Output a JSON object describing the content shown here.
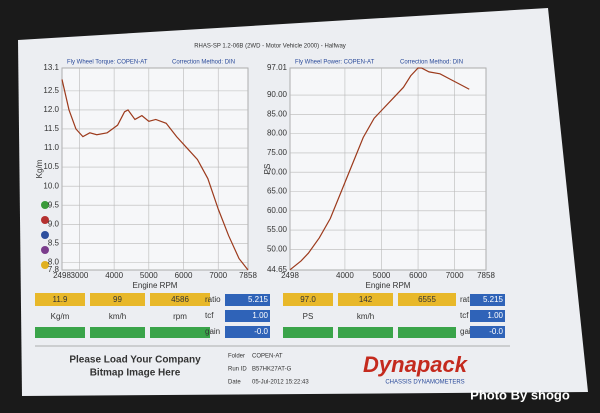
{
  "header": "RHAS-SP 1.2-06B (2WD - Motor Vehicle 2000) - Halfway",
  "chart_data": [
    {
      "type": "line",
      "title": "Fly Wheel Torque: COPEN-AT",
      "subtitle": "Correction Method: DIN",
      "y_label": "Kg/m",
      "x_label": "Engine RPM",
      "x": [
        2498,
        2700,
        2900,
        3100,
        3300,
        3500,
        3800,
        4100,
        4300,
        4400,
        4600,
        4800,
        5000,
        5200,
        5500,
        5800,
        6100,
        6400,
        6700,
        7000,
        7300,
        7600,
        7858
      ],
      "series": [
        {
          "name": "Torque",
          "color": "#9c3a1c",
          "values": [
            12.8,
            12.0,
            11.5,
            11.3,
            11.4,
            11.35,
            11.4,
            11.6,
            11.95,
            12.0,
            11.75,
            11.85,
            11.7,
            11.75,
            11.65,
            11.3,
            11.0,
            10.7,
            10.2,
            9.4,
            8.7,
            8.1,
            7.8
          ]
        }
      ],
      "xlim": [
        2498,
        7858
      ],
      "xticks": [
        2498,
        3000,
        4000,
        5000,
        6000,
        7000,
        7858
      ],
      "ylim": [
        7.8,
        13.1
      ],
      "yticks": [
        7.8,
        {
          "value": 8,
          "label": "8.0"
        },
        8.5,
        {
          "value": 9,
          "label": "9.0"
        },
        9.5,
        {
          "value": 10,
          "label": "10.0"
        },
        10.5,
        {
          "value": 11,
          "label": "11.0"
        },
        11.5,
        {
          "value": 12,
          "label": "12.0"
        },
        12.5,
        13.1
      ],
      "grid": true
    },
    {
      "type": "line",
      "title": "Fly Wheel Power: COPEN-AT",
      "subtitle": "Correction Method: DIN",
      "y_label": "PS",
      "x_label": "Engine RPM",
      "x": [
        2498,
        2800,
        3000,
        3300,
        3600,
        3900,
        4200,
        4500,
        4800,
        5000,
        5300,
        5600,
        5800,
        6000,
        6100,
        6300,
        6600,
        6900,
        7200,
        7400
      ],
      "series": [
        {
          "name": "Power",
          "color": "#9c3a1c",
          "values": [
            44.7,
            47,
            49,
            53,
            58,
            65,
            72,
            79,
            84,
            86,
            89,
            92,
            95,
            97.01,
            97,
            96,
            95.5,
            94,
            92.5,
            91.5
          ]
        }
      ],
      "xlim": [
        2498,
        7858
      ],
      "xticks": [
        2498,
        4000,
        5000,
        6000,
        7000,
        7858
      ],
      "ylim": [
        44.65,
        97.01
      ],
      "yticks": [
        44.65,
        {
          "value": 50,
          "label": "50.00"
        },
        {
          "value": 55,
          "label": "55.00"
        },
        {
          "value": 60,
          "label": "60.00"
        },
        {
          "value": 65,
          "label": "65.00"
        },
        {
          "value": 70,
          "label": "70.00"
        },
        {
          "value": 75,
          "label": "75.00"
        },
        {
          "value": 80,
          "label": "80.00"
        },
        {
          "value": 85,
          "label": "85.00"
        },
        {
          "value": 90,
          "label": "90.00"
        },
        97.01
      ],
      "grid": true
    }
  ],
  "readouts": [
    {
      "values": [
        "11.9",
        "99",
        "4586"
      ],
      "units": [
        "Kg/m",
        "km/h",
        "rpm"
      ],
      "params": [
        {
          "label": "ratio",
          "value": "5.215"
        },
        {
          "label": "tcf",
          "value": "1.00"
        },
        {
          "label": "gain",
          "value": "-0.0"
        }
      ]
    },
    {
      "values": [
        "97.0",
        "142",
        "6555"
      ],
      "units": [
        "PS",
        "km/h"
      ],
      "params": [
        {
          "label": "ratio",
          "value": "5.215"
        },
        {
          "label": "tcf",
          "value": "1.00"
        },
        {
          "label": "gain",
          "value": "-0.0"
        }
      ]
    }
  ],
  "footer": {
    "logo_note": [
      "Please Load Your Company",
      "Bitmap Image Here"
    ],
    "fields": [
      {
        "label": "Folder",
        "value": "COPEN-AT"
      },
      {
        "label": "Run ID",
        "value": "B57HK27AT-G"
      },
      {
        "label": "Date",
        "value": "05-Jul-2012 15:22:43"
      }
    ],
    "brand": "Dynapack",
    "brand_sub": "CHASSIS DYNAMOMETERS"
  },
  "watermark": "Photo By shogo"
}
